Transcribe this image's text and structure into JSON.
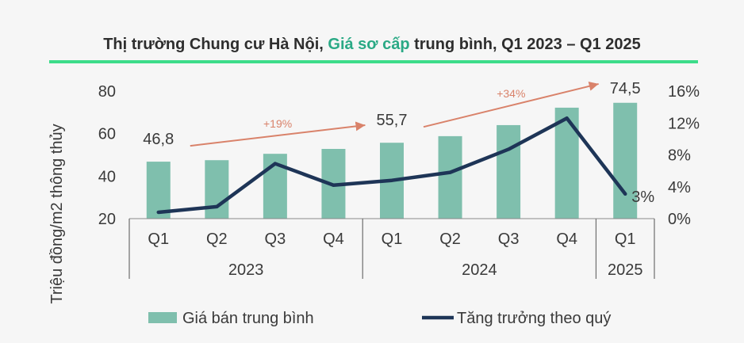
{
  "chart_data": {
    "type": "bar+line",
    "title_parts": [
      "Thị trường Chung cư Hà Nội, ",
      "Giá sơ cấp",
      " trung bình, Q1 2023 – Q1 2025"
    ],
    "ylabel": "Triệu đồng/m2 thông thủy",
    "categories": [
      "Q1",
      "Q2",
      "Q3",
      "Q4",
      "Q1",
      "Q2",
      "Q3",
      "Q4",
      "Q1"
    ],
    "years": [
      {
        "label": "2023",
        "start": 0,
        "end": 3
      },
      {
        "label": "2024",
        "start": 4,
        "end": 7
      },
      {
        "label": "2025",
        "start": 8,
        "end": 8
      }
    ],
    "left_axis": {
      "min": 20,
      "max": 80,
      "ticks": [
        "20",
        "40",
        "60",
        "80"
      ]
    },
    "right_axis": {
      "min": 0,
      "max": 16,
      "ticks": [
        "0%",
        "4%",
        "8%",
        "12%",
        "16%"
      ]
    },
    "series": [
      {
        "name": "Giá bán trung bình",
        "type": "bar",
        "axis": "left",
        "color": "#7fbfad",
        "values": [
          46.8,
          47.5,
          50.5,
          52.8,
          55.7,
          58.8,
          64.0,
          72.2,
          74.5
        ]
      },
      {
        "name": "Tăng trưởng theo quý",
        "type": "line",
        "axis": "right",
        "color": "#1e3557",
        "values": [
          0.8,
          1.5,
          6.9,
          4.2,
          4.8,
          5.8,
          8.7,
          12.6,
          3.1
        ]
      }
    ],
    "data_labels": [
      {
        "series": 0,
        "index": 0,
        "text": "46,8"
      },
      {
        "series": 0,
        "index": 4,
        "text": "55,7"
      },
      {
        "series": 0,
        "index": 8,
        "text": "74,5"
      },
      {
        "series": 1,
        "index": 8,
        "text": "3%"
      }
    ],
    "annotations": [
      {
        "text": "+19%",
        "from": 0,
        "to": 3
      },
      {
        "text": "+34%",
        "from": 4,
        "to": 7
      }
    ],
    "colors": {
      "accent": "#2aa985",
      "rule": "#3ddc8a",
      "arrow": "#d9826a",
      "bar": "#7fbfad",
      "line": "#1e3557"
    }
  }
}
